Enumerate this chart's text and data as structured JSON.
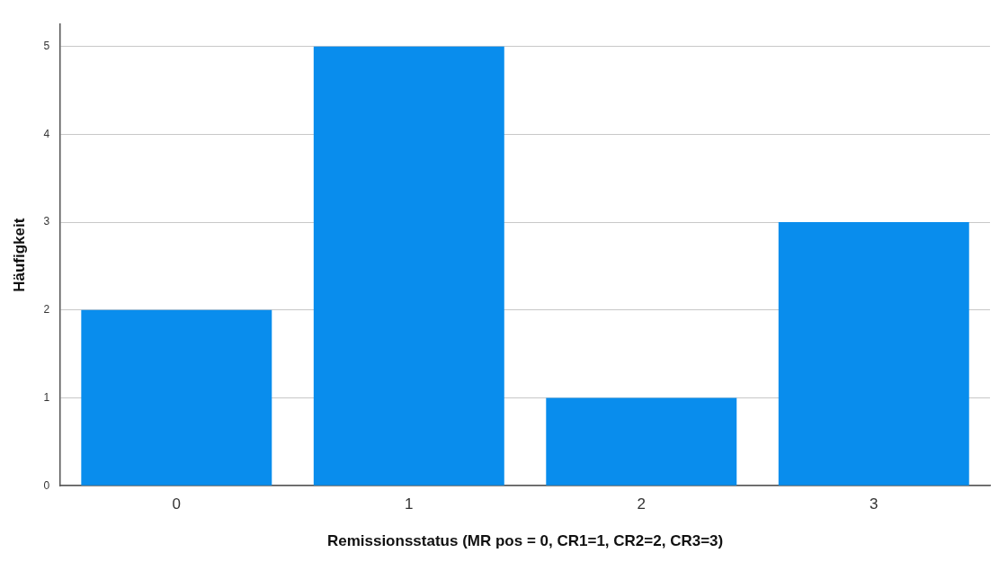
{
  "chart_data": {
    "type": "bar",
    "xlabel": "Remissionsstatus (MR pos = 0, CR1=1, CR2=2, CR3=3)",
    "ylabel": "Häufigkeit",
    "categories": [
      "0",
      "1",
      "2",
      "3"
    ],
    "values": [
      2,
      5,
      1,
      3
    ],
    "color": "#098ded",
    "ylim": [
      0,
      5.25
    ],
    "yticks": [
      0,
      1,
      2,
      3,
      4,
      5
    ],
    "grid": "y",
    "legend": false
  }
}
